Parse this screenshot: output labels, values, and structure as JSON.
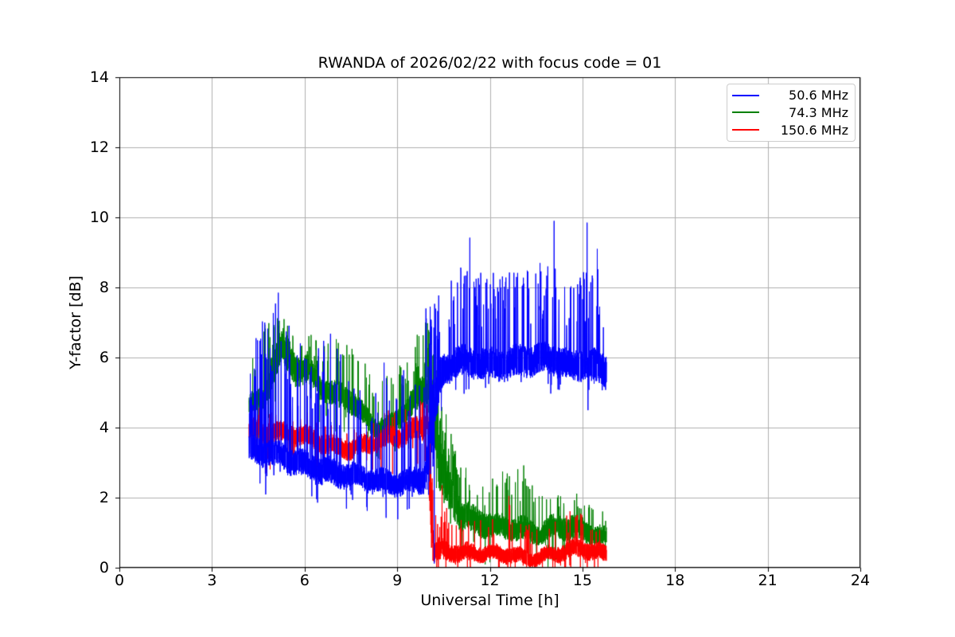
{
  "chart_data": {
    "type": "line",
    "title": "RWANDA of 2026/02/22 with focus code = 01",
    "xlabel": "Universal Time [h]",
    "ylabel": "Y-factor [dB]",
    "xlim": [
      0,
      24
    ],
    "ylim": [
      0,
      14
    ],
    "xticks": [
      0,
      3,
      6,
      9,
      12,
      15,
      18,
      21,
      24
    ],
    "yticks": [
      0,
      2,
      4,
      6,
      8,
      10,
      12,
      14
    ],
    "grid": true,
    "grid_color": "#b0b0b0",
    "background_color": "#ffffff",
    "axis_color": "#000000",
    "data_time_range": [
      4.2,
      15.78
    ],
    "legend": {
      "position": "top-right",
      "entries": [
        {
          "label": "50.6 MHz",
          "color": "#0000ff"
        },
        {
          "label": "74.3 MHz",
          "color": "#008000"
        },
        {
          "label": "150.6 MHz",
          "color": "#ff0000"
        }
      ]
    },
    "series": [
      {
        "name": "74.3 MHz",
        "color": "#008000",
        "draw_order": 1,
        "envelope_keys": [
          [
            4.2,
            4.65,
            0.3,
            0.1,
            1.3
          ],
          [
            4.7,
            4.8,
            0.35,
            0.14,
            2.1
          ],
          [
            5.0,
            5.9,
            0.55,
            0.12,
            1.0
          ],
          [
            5.3,
            6.35,
            0.55,
            0.08,
            0.7
          ],
          [
            5.7,
            5.7,
            0.45,
            0.08,
            0.8
          ],
          [
            6.1,
            5.65,
            0.4,
            0.08,
            0.8
          ],
          [
            6.5,
            5.1,
            0.35,
            0.1,
            1.2
          ],
          [
            7.0,
            4.9,
            0.35,
            0.1,
            1.4
          ],
          [
            7.6,
            4.75,
            0.35,
            0.1,
            1.5
          ],
          [
            8.2,
            4.1,
            0.3,
            0.1,
            1.3
          ],
          [
            8.9,
            4.1,
            0.3,
            0.12,
            1.5
          ],
          [
            9.4,
            4.6,
            0.4,
            0.12,
            1.4
          ],
          [
            9.95,
            5.0,
            0.5,
            0.22,
            1.8
          ],
          [
            10.15,
            4.5,
            1.0,
            0.18,
            1.5
          ],
          [
            10.35,
            3.0,
            0.8,
            0.14,
            1.6
          ],
          [
            10.7,
            2.2,
            0.6,
            0.12,
            1.5
          ],
          [
            11.1,
            1.55,
            0.45,
            0.1,
            1.3
          ],
          [
            11.6,
            1.35,
            0.4,
            0.1,
            1.4
          ],
          [
            12.2,
            1.15,
            0.35,
            0.1,
            1.3
          ],
          [
            13.0,
            1.05,
            0.35,
            0.09,
            1.6
          ],
          [
            13.6,
            1.0,
            0.3,
            0.08,
            1.1
          ],
          [
            14.2,
            1.25,
            0.35,
            0.07,
            0.8
          ],
          [
            14.8,
            1.15,
            0.35,
            0.07,
            0.8
          ],
          [
            15.3,
            0.95,
            0.3,
            0.06,
            0.7
          ],
          [
            15.78,
            0.75,
            0.3,
            0.05,
            0.5
          ]
        ],
        "notable_spikes": [
          [
            5.18,
            7.05
          ],
          [
            10.02,
            6.78
          ],
          [
            13.1,
            2.92
          ]
        ]
      },
      {
        "name": "150.6 MHz",
        "color": "#ff0000",
        "draw_order": 2,
        "envelope_keys": [
          [
            4.2,
            4.0,
            0.3,
            0.05,
            0.5
          ],
          [
            5.0,
            3.85,
            0.3,
            0.05,
            0.5
          ],
          [
            6.0,
            3.7,
            0.28,
            0.05,
            0.5
          ],
          [
            6.8,
            3.55,
            0.28,
            0.05,
            0.4
          ],
          [
            7.5,
            3.45,
            0.28,
            0.05,
            0.4
          ],
          [
            8.2,
            3.55,
            0.28,
            0.05,
            0.5
          ],
          [
            9.0,
            3.7,
            0.3,
            0.06,
            0.6
          ],
          [
            9.6,
            3.95,
            0.35,
            0.08,
            0.6
          ],
          [
            10.0,
            4.1,
            0.4,
            0.1,
            0.6
          ],
          [
            10.07,
            2.5,
            1.9,
            0.1,
            0.5
          ],
          [
            10.18,
            0.55,
            0.35,
            0.1,
            1.2
          ],
          [
            10.6,
            0.5,
            0.3,
            0.08,
            1.3
          ],
          [
            11.2,
            0.4,
            0.25,
            0.05,
            0.9
          ],
          [
            12.0,
            0.35,
            0.22,
            0.05,
            1.0
          ],
          [
            12.6,
            0.4,
            0.25,
            0.06,
            1.5
          ],
          [
            13.3,
            0.32,
            0.2,
            0.05,
            0.9
          ],
          [
            14.2,
            0.4,
            0.25,
            0.06,
            0.9
          ],
          [
            14.8,
            0.5,
            0.28,
            0.06,
            1.0
          ],
          [
            15.4,
            0.45,
            0.25,
            0.05,
            0.7
          ],
          [
            15.78,
            0.4,
            0.25,
            0.04,
            0.5
          ]
        ],
        "notable_spikes": [
          [
            9.97,
            4.65
          ],
          [
            10.45,
            2.35
          ],
          [
            12.62,
            2.05
          ],
          [
            14.82,
            1.5
          ]
        ]
      },
      {
        "name": "50.6 MHz",
        "color": "#0000ff",
        "draw_order": 3,
        "envelope_keys": [
          [
            4.2,
            3.35,
            0.4,
            0.3,
            2.0
          ],
          [
            4.5,
            3.3,
            0.4,
            0.2,
            3.6
          ],
          [
            5.2,
            3.15,
            0.4,
            0.2,
            4.3
          ],
          [
            5.6,
            3.05,
            0.4,
            0.16,
            3.5
          ],
          [
            6.2,
            2.95,
            0.4,
            0.16,
            3.4
          ],
          [
            7.0,
            2.7,
            0.4,
            0.14,
            3.8
          ],
          [
            7.5,
            2.6,
            0.35,
            0.07,
            2.6
          ],
          [
            8.2,
            2.45,
            0.35,
            0.06,
            2.3
          ],
          [
            8.8,
            2.45,
            0.35,
            0.11,
            3.8
          ],
          [
            9.3,
            2.5,
            0.35,
            0.09,
            3.0
          ],
          [
            9.8,
            2.55,
            0.4,
            0.08,
            2.6
          ],
          [
            9.95,
            2.8,
            0.5,
            0.25,
            4.4
          ],
          [
            10.1,
            3.8,
            1.2,
            0.28,
            3.2
          ],
          [
            10.25,
            4.9,
            0.9,
            0.2,
            2.2
          ],
          [
            10.45,
            5.55,
            0.5,
            0.14,
            2.3
          ],
          [
            10.8,
            5.8,
            0.45,
            0.14,
            2.4
          ],
          [
            11.4,
            5.85,
            0.45,
            0.16,
            2.5
          ],
          [
            12.0,
            5.85,
            0.45,
            0.17,
            2.4
          ],
          [
            13.0,
            5.9,
            0.45,
            0.17,
            2.4
          ],
          [
            14.1,
            5.9,
            0.45,
            0.15,
            2.5
          ],
          [
            14.6,
            5.75,
            0.45,
            0.07,
            2.2
          ],
          [
            15.05,
            5.85,
            0.5,
            0.17,
            2.6
          ],
          [
            15.5,
            5.8,
            0.5,
            0.14,
            2.8
          ],
          [
            15.78,
            5.6,
            0.5,
            0.1,
            2.0
          ]
        ],
        "notable_spikes": [
          [
            5.15,
            7.85
          ],
          [
            9.93,
            7.4
          ],
          [
            10.07,
            7.45
          ],
          [
            10.2,
            0.12
          ],
          [
            11.35,
            9.42
          ],
          [
            14.08,
            9.9
          ],
          [
            15.15,
            9.85
          ],
          [
            15.48,
            9.1
          ]
        ]
      }
    ]
  }
}
